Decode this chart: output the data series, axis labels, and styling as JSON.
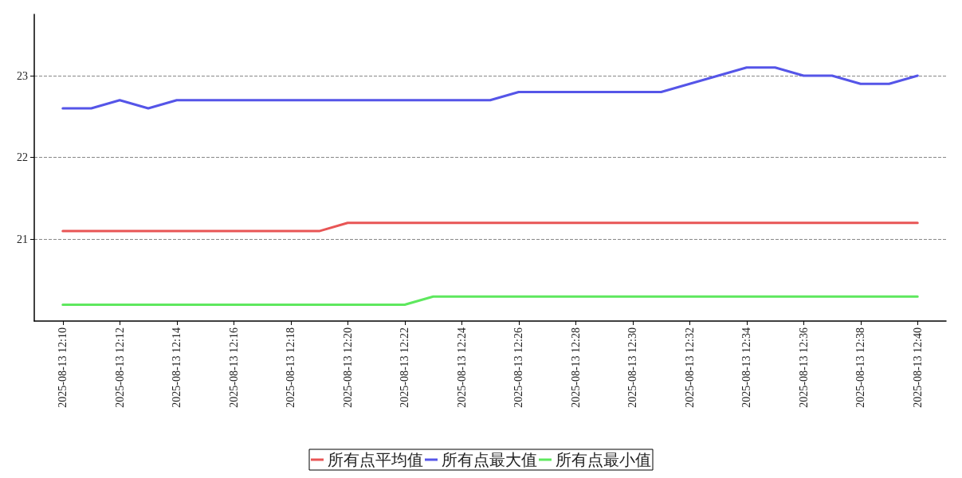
{
  "chart_data": {
    "type": "line",
    "x": [
      "2025-08-13T12:10",
      "2025-08-13T12:11",
      "2025-08-13T12:12",
      "2025-08-13T12:13",
      "2025-08-13T12:14",
      "2025-08-13T12:15",
      "2025-08-13T12:16",
      "2025-08-13T12:17",
      "2025-08-13T12:18",
      "2025-08-13T12:19",
      "2025-08-13T12:20",
      "2025-08-13T12:21",
      "2025-08-13T12:22",
      "2025-08-13T12:23",
      "2025-08-13T12:24",
      "2025-08-13T12:25",
      "2025-08-13T12:26",
      "2025-08-13T12:27",
      "2025-08-13T12:28",
      "2025-08-13T12:29",
      "2025-08-13T12:30",
      "2025-08-13T12:31",
      "2025-08-13T12:32",
      "2025-08-13T12:33",
      "2025-08-13T12:34",
      "2025-08-13T12:35",
      "2025-08-13T12:36",
      "2025-08-13T12:37",
      "2025-08-13T12:38",
      "2025-08-13T12:39",
      "2025-08-13T12:40"
    ],
    "series": [
      {
        "name": "所有点平均值",
        "color": "#e85555",
        "values": [
          21.1,
          21.1,
          21.1,
          21.1,
          21.1,
          21.1,
          21.1,
          21.1,
          21.1,
          21.1,
          21.2,
          21.2,
          21.2,
          21.2,
          21.2,
          21.2,
          21.2,
          21.2,
          21.2,
          21.2,
          21.2,
          21.2,
          21.2,
          21.2,
          21.2,
          21.2,
          21.2,
          21.2,
          21.2,
          21.2,
          21.2
        ]
      },
      {
        "name": "所有点最大值",
        "color": "#5555e8",
        "values": [
          22.6,
          22.6,
          22.7,
          22.6,
          22.7,
          22.7,
          22.7,
          22.7,
          22.7,
          22.7,
          22.7,
          22.7,
          22.7,
          22.7,
          22.7,
          22.7,
          22.8,
          22.8,
          22.8,
          22.8,
          22.8,
          22.8,
          22.9,
          23.0,
          23.1,
          23.1,
          23.0,
          23.0,
          22.9,
          22.9,
          23.0
        ]
      },
      {
        "name": "所有点最小值",
        "color": "#5ee85e",
        "values": [
          20.2,
          20.2,
          20.2,
          20.2,
          20.2,
          20.2,
          20.2,
          20.2,
          20.2,
          20.2,
          20.2,
          20.2,
          20.2,
          20.3,
          20.3,
          20.3,
          20.3,
          20.3,
          20.3,
          20.3,
          20.3,
          20.3,
          20.3,
          20.3,
          20.3,
          20.3,
          20.3,
          20.3,
          20.3,
          20.3,
          20.3
        ]
      }
    ],
    "xlim": [
      "2025-08-13T12:09",
      "2025-08-13T12:41"
    ],
    "xticks": [
      {
        "value": "2025-08-13T12:10",
        "label": "2025-08-13 12:10"
      },
      {
        "value": "2025-08-13T12:12",
        "label": "2025-08-13 12:12"
      },
      {
        "value": "2025-08-13T12:14",
        "label": "2025-08-13 12:14"
      },
      {
        "value": "2025-08-13T12:16",
        "label": "2025-08-13 12:16"
      },
      {
        "value": "2025-08-13T12:18",
        "label": "2025-08-13 12:18"
      },
      {
        "value": "2025-08-13T12:20",
        "label": "2025-08-13 12:20"
      },
      {
        "value": "2025-08-13T12:22",
        "label": "2025-08-13 12:22"
      },
      {
        "value": "2025-08-13T12:24",
        "label": "2025-08-13 12:24"
      },
      {
        "value": "2025-08-13T12:26",
        "label": "2025-08-13 12:26"
      },
      {
        "value": "2025-08-13T12:28",
        "label": "2025-08-13 12:28"
      },
      {
        "value": "2025-08-13T12:30",
        "label": "2025-08-13 12:30"
      },
      {
        "value": "2025-08-13T12:32",
        "label": "2025-08-13 12:32"
      },
      {
        "value": "2025-08-13T12:34",
        "label": "2025-08-13 12:34"
      },
      {
        "value": "2025-08-13T12:36",
        "label": "2025-08-13 12:36"
      },
      {
        "value": "2025-08-13T12:38",
        "label": "2025-08-13 12:38"
      },
      {
        "value": "2025-08-13T12:40",
        "label": "2025-08-13 12:40"
      }
    ],
    "ylim": [
      20,
      23.75
    ],
    "yticks": [
      21,
      22,
      23
    ],
    "grid": "y",
    "legend": "bottom",
    "marker": "none",
    "line_style": "solid"
  }
}
